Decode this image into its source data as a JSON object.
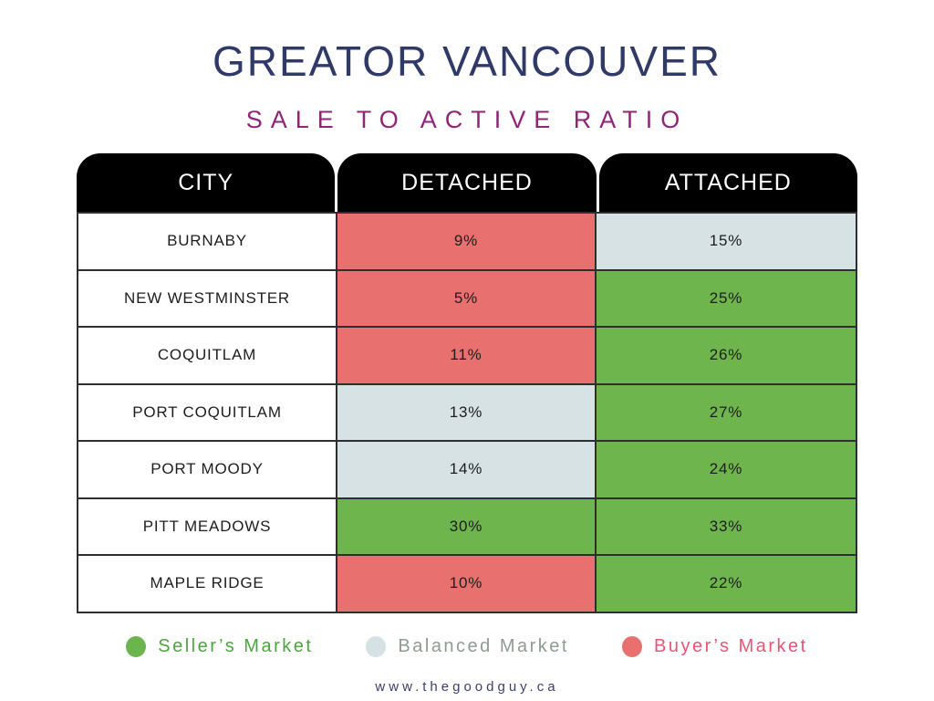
{
  "title": "GREATOR VANCOUVER",
  "subtitle": "SALE TO ACTIVE RATIO",
  "table": {
    "columns": [
      "CITY",
      "DETACHED",
      "ATTACHED"
    ],
    "rows": [
      {
        "city": "BURNABY",
        "detached": {
          "value": "9%",
          "market": "buyer"
        },
        "attached": {
          "value": "15%",
          "market": "balanced"
        }
      },
      {
        "city": "NEW WESTMINSTER",
        "detached": {
          "value": "5%",
          "market": "buyer"
        },
        "attached": {
          "value": "25%",
          "market": "seller"
        }
      },
      {
        "city": "COQUITLAM",
        "detached": {
          "value": "11%",
          "market": "buyer"
        },
        "attached": {
          "value": "26%",
          "market": "seller"
        }
      },
      {
        "city": "PORT COQUITLAM",
        "detached": {
          "value": "13%",
          "market": "balanced"
        },
        "attached": {
          "value": "27%",
          "market": "seller"
        }
      },
      {
        "city": "PORT MOODY",
        "detached": {
          "value": "14%",
          "market": "balanced"
        },
        "attached": {
          "value": "24%",
          "market": "seller"
        }
      },
      {
        "city": "PITT MEADOWS",
        "detached": {
          "value": "30%",
          "market": "seller"
        },
        "attached": {
          "value": "33%",
          "market": "seller"
        }
      },
      {
        "city": "MAPLE RIDGE",
        "detached": {
          "value": "10%",
          "market": "buyer"
        },
        "attached": {
          "value": "22%",
          "market": "seller"
        }
      }
    ]
  },
  "legend": [
    {
      "label": "Seller’s Market",
      "market": "seller",
      "dot_color": "#6CB44E",
      "text_color": "#4CA53F"
    },
    {
      "label": "Balanced Market",
      "market": "balanced",
      "dot_color": "#D6E1E3",
      "text_color": "#8E9C91"
    },
    {
      "label": "Buyer’s Market",
      "market": "buyer",
      "dot_color": "#E8706E",
      "text_color": "#E75575"
    }
  ],
  "footer": {
    "url": "www.thegoodguy.ca"
  },
  "colors": {
    "seller": "#6FB54D",
    "balanced": "#D7E2E4",
    "buyer": "#E8706E",
    "title": "#303A69",
    "subtitle": "#8F2478",
    "header_bg": "#000000",
    "header_text": "#FFFFFF"
  },
  "chart_data": {
    "type": "table",
    "title": "GREATOR VANCOUVER",
    "subtitle": "SALE TO ACTIVE RATIO",
    "categories": [
      "BURNABY",
      "NEW WESTMINSTER",
      "COQUITLAM",
      "PORT COQUITLAM",
      "PORT MOODY",
      "PITT MEADOWS",
      "MAPLE RIDGE"
    ],
    "series": [
      {
        "name": "DETACHED",
        "unit": "%",
        "values": [
          9,
          5,
          11,
          13,
          14,
          30,
          10
        ],
        "markets": [
          "buyer",
          "buyer",
          "buyer",
          "balanced",
          "balanced",
          "seller",
          "buyer"
        ]
      },
      {
        "name": "ATTACHED",
        "unit": "%",
        "values": [
          15,
          25,
          26,
          27,
          24,
          33,
          22
        ],
        "markets": [
          "balanced",
          "seller",
          "seller",
          "seller",
          "seller",
          "seller",
          "seller"
        ]
      }
    ],
    "legend": [
      "Seller’s Market",
      "Balanced Market",
      "Buyer’s Market"
    ],
    "legend_colors": {
      "seller": "#6FB54D",
      "balanced": "#D7E2E4",
      "buyer": "#E8706E"
    },
    "legend_position": "bottom"
  }
}
